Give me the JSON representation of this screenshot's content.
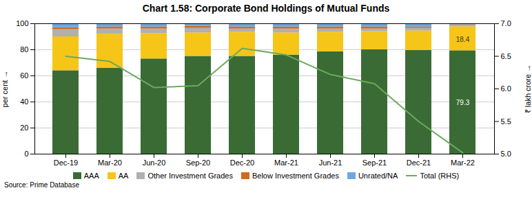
{
  "chart_data": {
    "type": "bar",
    "stacked": true,
    "title": "Chart 1.58: Corporate Bond Holdings of Mutual Funds",
    "categories": [
      "Dec-19",
      "Mar-20",
      "Jun-20",
      "Sep-20",
      "Dec-20",
      "Mar-21",
      "Jun-21",
      "Sep-21",
      "Dec-21",
      "Mar-22"
    ],
    "series": [
      {
        "name": "AAA",
        "color": "#3a6b35",
        "values": [
          64.0,
          66.0,
          73.0,
          75.0,
          75.0,
          76.0,
          78.5,
          80.0,
          79.5,
          79.3
        ]
      },
      {
        "name": "AA",
        "color": "#f5c518",
        "values": [
          26.0,
          26.0,
          19.5,
          18.0,
          18.5,
          17.0,
          15.0,
          14.0,
          15.0,
          18.4
        ]
      },
      {
        "name": "Other Investment Grades",
        "color": "#b0b0b0",
        "values": [
          5.5,
          4.0,
          3.5,
          3.5,
          2.5,
          3.0,
          2.5,
          2.0,
          2.0,
          1.0
        ]
      },
      {
        "name": "Below Investment Grades",
        "color": "#d2691e",
        "values": [
          1.5,
          1.5,
          1.5,
          1.5,
          1.5,
          1.5,
          1.5,
          1.5,
          1.0,
          0.5
        ]
      },
      {
        "name": "Unrated/NA",
        "color": "#6fa8dc",
        "values": [
          3.0,
          2.5,
          2.5,
          2.0,
          2.5,
          2.5,
          2.5,
          2.5,
          2.5,
          0.8
        ]
      },
      {
        "name": "Total (RHS)",
        "type": "line",
        "axis": "y2",
        "color": "#6aaa5e",
        "values": [
          6.5,
          6.42,
          6.02,
          6.05,
          6.62,
          6.52,
          6.22,
          6.08,
          5.5,
          5.02
        ]
      }
    ],
    "ylabel": "per cent",
    "y2label": "₹ lakh crore",
    "ylim": [
      0,
      100
    ],
    "yticks": [
      0,
      20,
      40,
      60,
      80,
      100
    ],
    "y2lim": [
      5.0,
      7.0
    ],
    "y2ticks": [
      {
        "value": 5.0,
        "label": "5.0"
      },
      5.5,
      {
        "value": 6.0,
        "label": "6.0"
      },
      6.5,
      {
        "value": 7.0,
        "label": "7.0"
      }
    ],
    "grid": true,
    "legend": "bottom",
    "annotations": [
      {
        "x": "Mar-22",
        "y": 39.5,
        "text": "79.3",
        "color": "#ffffff"
      },
      {
        "x": "Mar-22",
        "y": 88.0,
        "text": "18.4",
        "color": "#3a3a00"
      }
    ],
    "caption": "Source: Prime Database"
  }
}
